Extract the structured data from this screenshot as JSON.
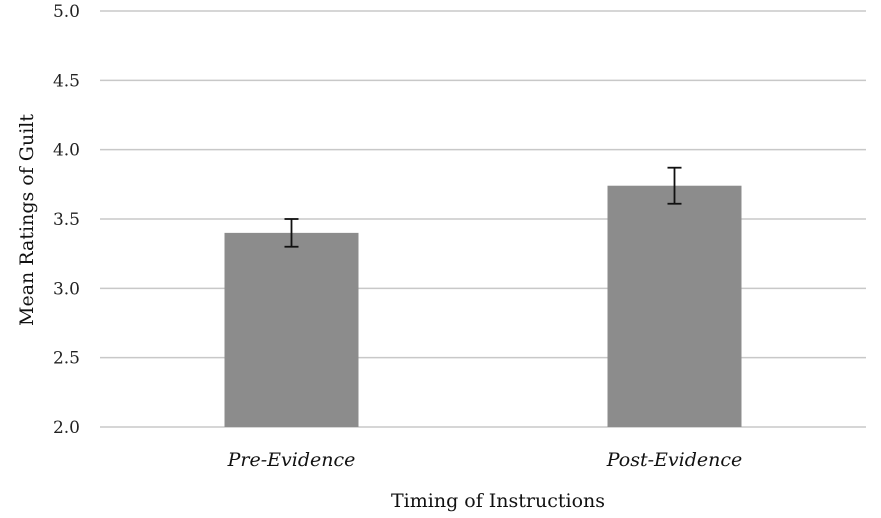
{
  "chart_data": {
    "type": "bar",
    "categories": [
      "Pre-Evidence",
      "Post-Evidence"
    ],
    "values": [
      3.4,
      3.74
    ],
    "error_bars": [
      {
        "low": 3.3,
        "high": 3.5
      },
      {
        "low": 3.61,
        "high": 3.87
      }
    ],
    "xlabel": "Timing of Instructions",
    "ylabel": "Mean Ratings of Guilt",
    "ylim": [
      2.0,
      5.0
    ],
    "yticks": [
      "2.0",
      "2.5",
      "3.0",
      "3.5",
      "4.0",
      "4.5",
      "5.0"
    ],
    "grid": true,
    "colors": {
      "bar": "#8c8c8c",
      "grid": "#c8c8c8",
      "error": "#111111"
    }
  }
}
